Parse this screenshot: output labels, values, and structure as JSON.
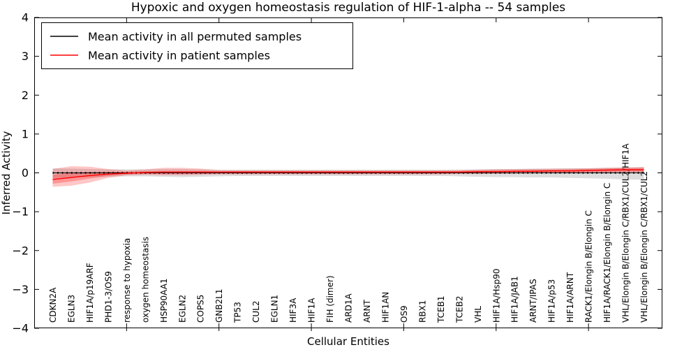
{
  "figure": {
    "title": "Hypoxic and oxygen homeostasis regulation of HIF-1-alpha -- 54 samples",
    "xlabel": "Cellular Entities",
    "ylabel": "Inferred Activity"
  },
  "legend": {
    "position": "upper left",
    "items": [
      {
        "label": "Mean activity in all permuted samples",
        "color": "#000000"
      },
      {
        "label": "Mean activity in patient samples",
        "color": "#ff0000"
      }
    ]
  },
  "chart_data": {
    "type": "line",
    "title": "Hypoxic and oxygen homeostasis regulation of HIF-1-alpha -- 54 samples",
    "xlabel": "Cellular Entities",
    "ylabel": "Inferred Activity",
    "ylim": [
      -4,
      4
    ],
    "yticks": [
      -4,
      -3,
      -2,
      -1,
      0,
      1,
      2,
      3,
      4
    ],
    "ytick_labels": [
      "−4",
      "−3",
      "−2",
      "−1",
      "0",
      "1",
      "2",
      "3",
      "4"
    ],
    "x_major_ticks": [
      5,
      10,
      15,
      20,
      25,
      30
    ],
    "grid": false,
    "legend_position": "upper left",
    "categories": [
      "CDKN2A",
      "EGLN3",
      "HIF1A/p19ARF",
      "PHD1-3/OS9",
      "response to hypoxia",
      "oxygen homeostasis",
      "HSP90AA1",
      "EGLN2",
      "COPS5",
      "GNB2L1",
      "TP53",
      "CUL2",
      "EGLN1",
      "HIF3A",
      "HIF1A",
      "FIH (dimer)",
      "ARD1A",
      "ARNT",
      "HIF1AN",
      "OS9",
      "RBX1",
      "TCEB1",
      "TCEB2",
      "VHL",
      "HIF1A/Hsp90",
      "HIF1A/JAB1",
      "ARNT/IPAS",
      "HIF1A/p53",
      "HIF1A/ARNT",
      "RACK1/Elongin B/Elongin C",
      "HIF1A/RACK1/Elongin B/Elongin C",
      "VHL/Elongin B/Elongin C/RBX1/CUL2/HIF1A",
      "VHL/Elongin B/Elongin C/RBX1/CUL2"
    ],
    "series": [
      {
        "name": "Mean activity in all permuted samples",
        "color": "#000000",
        "width": 1,
        "dotted_overlay": true,
        "values": [
          0,
          0,
          0,
          0,
          0,
          0,
          0,
          0,
          0,
          0,
          0,
          0,
          0,
          0,
          0,
          0,
          0,
          0,
          0,
          0,
          0,
          0,
          0,
          0,
          0,
          0,
          0,
          0,
          0,
          0,
          0,
          0,
          0
        ]
      },
      {
        "name": "Mean activity in patient samples",
        "color": "#ff0000",
        "width": 1.4,
        "dotted_overlay": false,
        "values": [
          -0.17,
          -0.12,
          -0.07,
          -0.03,
          -0.01,
          0.01,
          0.02,
          0.02,
          0.02,
          0.02,
          0.02,
          0.02,
          0.02,
          0.02,
          0.02,
          0.02,
          0.02,
          0.02,
          0.02,
          0.02,
          0.02,
          0.02,
          0.02,
          0.03,
          0.03,
          0.04,
          0.04,
          0.05,
          0.05,
          0.06,
          0.07,
          0.08,
          0.08
        ]
      }
    ],
    "bands": [
      {
        "name": "permuted-range",
        "color": "#999999",
        "opacity": 0.32,
        "lower": [
          -0.13,
          -0.12,
          -0.11,
          -0.1,
          -0.09,
          -0.09,
          -0.1,
          -0.11,
          -0.1,
          -0.09,
          -0.08,
          -0.08,
          -0.08,
          -0.08,
          -0.08,
          -0.08,
          -0.08,
          -0.08,
          -0.08,
          -0.08,
          -0.08,
          -0.08,
          -0.09,
          -0.1,
          -0.11,
          -0.11,
          -0.12,
          -0.12,
          -0.13,
          -0.14,
          -0.15,
          -0.17,
          -0.18
        ],
        "upper": [
          0.12,
          0.11,
          0.1,
          0.09,
          0.09,
          0.09,
          0.1,
          0.1,
          0.09,
          0.08,
          0.08,
          0.08,
          0.08,
          0.08,
          0.08,
          0.08,
          0.08,
          0.08,
          0.08,
          0.08,
          0.08,
          0.08,
          0.08,
          0.09,
          0.1,
          0.1,
          0.11,
          0.11,
          0.12,
          0.12,
          0.13,
          0.14,
          0.15
        ]
      },
      {
        "name": "patient-range-outer",
        "color": "#ff0000",
        "opacity": 0.22,
        "lower": [
          -0.36,
          -0.33,
          -0.25,
          -0.13,
          -0.06,
          -0.05,
          -0.06,
          -0.06,
          -0.05,
          -0.04,
          -0.04,
          -0.04,
          -0.04,
          -0.04,
          -0.04,
          -0.04,
          -0.04,
          -0.04,
          -0.04,
          -0.04,
          -0.04,
          -0.04,
          -0.03,
          -0.03,
          -0.02,
          -0.02,
          -0.01,
          -0.01,
          0.0,
          0.0,
          0.01,
          0.01,
          0.02
        ],
        "upper": [
          0.1,
          0.17,
          0.16,
          0.1,
          0.06,
          0.09,
          0.13,
          0.13,
          0.11,
          0.07,
          0.06,
          0.06,
          0.06,
          0.06,
          0.06,
          0.06,
          0.06,
          0.06,
          0.06,
          0.06,
          0.06,
          0.06,
          0.07,
          0.08,
          0.09,
          0.1,
          0.1,
          0.11,
          0.11,
          0.12,
          0.13,
          0.14,
          0.15
        ]
      },
      {
        "name": "patient-range-inner",
        "color": "#ff0000",
        "opacity": 0.25,
        "lower": [
          -0.28,
          -0.22,
          -0.15,
          -0.08,
          -0.04,
          -0.03,
          -0.03,
          -0.03,
          -0.03,
          -0.02,
          -0.02,
          -0.02,
          -0.02,
          -0.02,
          -0.02,
          -0.02,
          -0.02,
          -0.02,
          -0.02,
          -0.02,
          -0.02,
          -0.02,
          -0.01,
          -0.01,
          0.0,
          0.0,
          0.0,
          0.01,
          0.01,
          0.02,
          0.02,
          0.03,
          0.03
        ],
        "upper": [
          -0.05,
          0.0,
          0.02,
          0.03,
          0.03,
          0.04,
          0.05,
          0.05,
          0.05,
          0.04,
          0.05,
          0.05,
          0.05,
          0.05,
          0.05,
          0.05,
          0.05,
          0.05,
          0.05,
          0.05,
          0.05,
          0.05,
          0.05,
          0.06,
          0.07,
          0.07,
          0.08,
          0.08,
          0.09,
          0.1,
          0.11,
          0.12,
          0.12
        ]
      }
    ]
  }
}
